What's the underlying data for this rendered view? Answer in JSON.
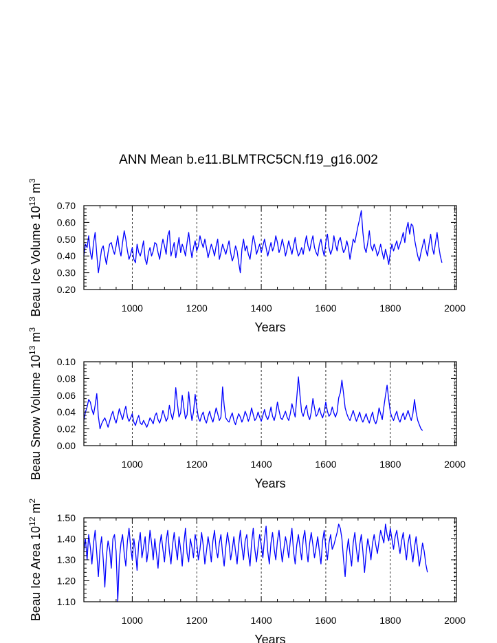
{
  "figure_title": "ANN Mean b.e11.BLMTRC5CN.f19_g16.002",
  "chart_data": [
    {
      "type": "line",
      "title": "",
      "xlabel": "Years",
      "ylabel": "Beau Ice Volume 10^13 m^3",
      "ylabel_parts": {
        "base": "Beau Ice Volume 10",
        "exp": "13",
        "unit": "m",
        "unit_exp": "3"
      },
      "xlim": [
        850,
        2005
      ],
      "ylim": [
        0.2,
        0.7
      ],
      "x_ticks": [
        1000,
        1200,
        1400,
        1600,
        1800,
        2000
      ],
      "x_tick_labels": [
        "1000",
        "1200",
        "1400",
        "1600",
        "1800",
        "2000"
      ],
      "y_ticks": [
        0.2,
        0.3,
        0.4,
        0.5,
        0.6,
        0.7
      ],
      "y_tick_labels": [
        "0.20",
        "0.30",
        "0.40",
        "0.50",
        "0.60",
        "0.70"
      ],
      "vertical_gridlines": [
        1000,
        1200,
        1400,
        1600,
        1800,
        2000
      ],
      "line_color": "#0000ff",
      "series": [
        {
          "name": "Beau Ice Volume",
          "x_start": 850,
          "x_step": 5,
          "values": [
            0.4,
            0.47,
            0.45,
            0.52,
            0.42,
            0.38,
            0.48,
            0.54,
            0.41,
            0.3,
            0.37,
            0.44,
            0.46,
            0.4,
            0.35,
            0.42,
            0.47,
            0.48,
            0.44,
            0.41,
            0.46,
            0.52,
            0.44,
            0.4,
            0.48,
            0.55,
            0.5,
            0.43,
            0.38,
            0.41,
            0.45,
            0.38,
            0.36,
            0.47,
            0.42,
            0.4,
            0.44,
            0.49,
            0.38,
            0.35,
            0.42,
            0.45,
            0.4,
            0.43,
            0.48,
            0.47,
            0.42,
            0.38,
            0.45,
            0.5,
            0.46,
            0.41,
            0.52,
            0.55,
            0.4,
            0.44,
            0.48,
            0.39,
            0.45,
            0.51,
            0.42,
            0.47,
            0.44,
            0.4,
            0.48,
            0.54,
            0.45,
            0.39,
            0.45,
            0.49,
            0.43,
            0.46,
            0.52,
            0.48,
            0.45,
            0.5,
            0.45,
            0.39,
            0.43,
            0.47,
            0.44,
            0.4,
            0.46,
            0.5,
            0.38,
            0.42,
            0.47,
            0.44,
            0.41,
            0.45,
            0.49,
            0.42,
            0.37,
            0.4,
            0.46,
            0.43,
            0.36,
            0.3,
            0.44,
            0.5,
            0.43,
            0.46,
            0.41,
            0.38,
            0.45,
            0.52,
            0.48,
            0.41,
            0.44,
            0.47,
            0.42,
            0.46,
            0.5,
            0.45,
            0.4,
            0.44,
            0.48,
            0.43,
            0.46,
            0.52,
            0.48,
            0.42,
            0.45,
            0.5,
            0.46,
            0.4,
            0.44,
            0.49,
            0.45,
            0.41,
            0.46,
            0.51,
            0.44,
            0.4,
            0.42,
            0.45,
            0.41,
            0.47,
            0.52,
            0.46,
            0.43,
            0.48,
            0.52,
            0.45,
            0.42,
            0.4,
            0.47,
            0.5,
            0.44,
            0.4,
            0.48,
            0.53,
            0.45,
            0.41,
            0.44,
            0.52,
            0.47,
            0.43,
            0.49,
            0.51,
            0.46,
            0.42,
            0.44,
            0.49,
            0.45,
            0.38,
            0.44,
            0.5,
            0.48,
            0.53,
            0.58,
            0.62,
            0.67,
            0.54,
            0.45,
            0.42,
            0.48,
            0.55,
            0.46,
            0.43,
            0.47,
            0.44,
            0.4,
            0.43,
            0.47,
            0.42,
            0.38,
            0.44,
            0.4,
            0.35,
            0.42,
            0.47,
            0.43,
            0.46,
            0.49,
            0.44,
            0.47,
            0.5,
            0.54,
            0.48,
            0.56,
            0.6,
            0.53,
            0.59,
            0.58,
            0.5,
            0.45,
            0.4,
            0.37,
            0.42,
            0.46,
            0.5,
            0.44,
            0.4,
            0.47,
            0.53,
            0.45,
            0.41,
            0.48,
            0.54,
            0.46,
            0.4,
            0.36
          ]
        }
      ]
    },
    {
      "type": "line",
      "title": "",
      "xlabel": "Years",
      "ylabel": "Beau Snow Volume 10^13 m^3",
      "ylabel_parts": {
        "base": "Beau Snow Volume 10",
        "exp": "13",
        "unit": "m",
        "unit_exp": "3"
      },
      "xlim": [
        850,
        2005
      ],
      "ylim": [
        0.0,
        0.1
      ],
      "x_ticks": [
        1000,
        1200,
        1400,
        1600,
        1800,
        2000
      ],
      "x_tick_labels": [
        "1000",
        "1200",
        "1400",
        "1600",
        "1800",
        "2000"
      ],
      "y_ticks": [
        0.0,
        0.02,
        0.04,
        0.06,
        0.08,
        0.1
      ],
      "y_tick_labels": [
        "0.00",
        "0.02",
        "0.04",
        "0.06",
        "0.08",
        "0.10"
      ],
      "vertical_gridlines": [
        1000,
        1200,
        1400,
        1600,
        1800,
        2000
      ],
      "line_color": "#0000ff",
      "series": [
        {
          "name": "Beau Snow Volume",
          "x_start": 850,
          "x_step": 5,
          "values": [
            0.03,
            0.04,
            0.046,
            0.055,
            0.052,
            0.043,
            0.037,
            0.048,
            0.062,
            0.035,
            0.02,
            0.026,
            0.03,
            0.033,
            0.028,
            0.022,
            0.029,
            0.036,
            0.041,
            0.032,
            0.027,
            0.035,
            0.044,
            0.037,
            0.031,
            0.04,
            0.047,
            0.034,
            0.029,
            0.033,
            0.038,
            0.028,
            0.024,
            0.031,
            0.036,
            0.027,
            0.025,
            0.03,
            0.026,
            0.022,
            0.027,
            0.033,
            0.03,
            0.026,
            0.035,
            0.039,
            0.031,
            0.027,
            0.033,
            0.042,
            0.036,
            0.029,
            0.033,
            0.048,
            0.038,
            0.031,
            0.042,
            0.069,
            0.05,
            0.034,
            0.039,
            0.06,
            0.045,
            0.032,
            0.037,
            0.064,
            0.044,
            0.03,
            0.04,
            0.061,
            0.046,
            0.033,
            0.029,
            0.036,
            0.04,
            0.031,
            0.027,
            0.035,
            0.041,
            0.033,
            0.028,
            0.036,
            0.045,
            0.038,
            0.03,
            0.034,
            0.07,
            0.048,
            0.033,
            0.03,
            0.028,
            0.034,
            0.039,
            0.03,
            0.025,
            0.032,
            0.038,
            0.034,
            0.028,
            0.033,
            0.041,
            0.036,
            0.029,
            0.035,
            0.045,
            0.037,
            0.03,
            0.033,
            0.04,
            0.034,
            0.029,
            0.036,
            0.043,
            0.035,
            0.031,
            0.037,
            0.046,
            0.035,
            0.03,
            0.038,
            0.052,
            0.042,
            0.033,
            0.031,
            0.036,
            0.041,
            0.034,
            0.03,
            0.038,
            0.05,
            0.042,
            0.034,
            0.057,
            0.082,
            0.06,
            0.04,
            0.035,
            0.042,
            0.048,
            0.036,
            0.031,
            0.04,
            0.056,
            0.045,
            0.035,
            0.038,
            0.045,
            0.038,
            0.033,
            0.04,
            0.052,
            0.041,
            0.035,
            0.038,
            0.046,
            0.039,
            0.034,
            0.04,
            0.057,
            0.063,
            0.078,
            0.062,
            0.045,
            0.038,
            0.033,
            0.03,
            0.036,
            0.042,
            0.035,
            0.029,
            0.034,
            0.04,
            0.032,
            0.028,
            0.033,
            0.038,
            0.031,
            0.027,
            0.034,
            0.04,
            0.03,
            0.026,
            0.032,
            0.045,
            0.038,
            0.031,
            0.046,
            0.06,
            0.072,
            0.055,
            0.04,
            0.034,
            0.03,
            0.036,
            0.041,
            0.032,
            0.028,
            0.034,
            0.039,
            0.031,
            0.036,
            0.042,
            0.035,
            0.03,
            0.038,
            0.055,
            0.04,
            0.03,
            0.025,
            0.02,
            0.018
          ]
        }
      ]
    },
    {
      "type": "line",
      "title": "",
      "xlabel": "Years",
      "ylabel": "Beau Ice Area 10^12 m^2",
      "ylabel_parts": {
        "base": "Beau Ice Area 10",
        "exp": "12",
        "unit": "m",
        "unit_exp": "2"
      },
      "xlim": [
        850,
        2005
      ],
      "ylim": [
        1.1,
        1.5
      ],
      "x_ticks": [
        1000,
        1200,
        1400,
        1600,
        1800,
        2000
      ],
      "x_tick_labels": [
        "1000",
        "1200",
        "1400",
        "1600",
        "1800",
        "2000"
      ],
      "y_ticks": [
        1.1,
        1.2,
        1.3,
        1.4,
        1.5
      ],
      "y_tick_labels": [
        "1.10",
        "1.20",
        "1.30",
        "1.40",
        "1.50"
      ],
      "vertical_gridlines": [
        1000,
        1200,
        1400,
        1600,
        1800,
        2000
      ],
      "line_color": "#0000ff",
      "series": [
        {
          "name": "Beau Ice Area",
          "x_start": 850,
          "x_step": 5,
          "values": [
            1.34,
            1.4,
            1.3,
            1.42,
            1.36,
            1.28,
            1.38,
            1.44,
            1.33,
            1.22,
            1.35,
            1.41,
            1.3,
            1.17,
            1.32,
            1.39,
            1.35,
            1.26,
            1.4,
            1.42,
            1.34,
            1.1,
            1.3,
            1.38,
            1.42,
            1.33,
            1.27,
            1.39,
            1.45,
            1.36,
            1.3,
            1.4,
            1.34,
            1.25,
            1.38,
            1.43,
            1.31,
            1.36,
            1.41,
            1.29,
            1.35,
            1.44,
            1.38,
            1.3,
            1.4,
            1.33,
            1.26,
            1.37,
            1.42,
            1.35,
            1.29,
            1.39,
            1.44,
            1.34,
            1.28,
            1.37,
            1.43,
            1.36,
            1.3,
            1.41,
            1.35,
            1.27,
            1.38,
            1.45,
            1.33,
            1.29,
            1.4,
            1.36,
            1.31,
            1.42,
            1.38,
            1.3,
            1.35,
            1.43,
            1.37,
            1.28,
            1.34,
            1.41,
            1.36,
            1.29,
            1.39,
            1.44,
            1.35,
            1.31,
            1.38,
            1.42,
            1.33,
            1.27,
            1.36,
            1.43,
            1.38,
            1.3,
            1.35,
            1.41,
            1.34,
            1.28,
            1.37,
            1.44,
            1.36,
            1.3,
            1.39,
            1.42,
            1.33,
            1.27,
            1.38,
            1.45,
            1.35,
            1.29,
            1.36,
            1.42,
            1.37,
            1.31,
            1.4,
            1.46,
            1.34,
            1.28,
            1.38,
            1.43,
            1.35,
            1.3,
            1.39,
            1.44,
            1.36,
            1.29,
            1.35,
            1.41,
            1.37,
            1.31,
            1.39,
            1.45,
            1.34,
            1.28,
            1.37,
            1.42,
            1.36,
            1.3,
            1.4,
            1.44,
            1.35,
            1.29,
            1.38,
            1.43,
            1.37,
            1.31,
            1.36,
            1.41,
            1.34,
            1.28,
            1.39,
            1.44,
            1.36,
            1.3,
            1.38,
            1.42,
            1.35,
            1.37,
            1.4,
            1.43,
            1.47,
            1.45,
            1.4,
            1.3,
            1.22,
            1.34,
            1.4,
            1.33,
            1.27,
            1.38,
            1.43,
            1.35,
            1.29,
            1.37,
            1.42,
            1.34,
            1.24,
            1.33,
            1.4,
            1.36,
            1.3,
            1.38,
            1.42,
            1.37,
            1.33,
            1.39,
            1.44,
            1.41,
            1.38,
            1.47,
            1.42,
            1.39,
            1.45,
            1.4,
            1.35,
            1.41,
            1.44,
            1.38,
            1.33,
            1.39,
            1.43,
            1.36,
            1.3,
            1.38,
            1.42,
            1.35,
            1.29,
            1.36,
            1.41,
            1.34,
            1.27,
            1.32,
            1.38,
            1.34,
            1.28,
            1.24
          ]
        }
      ]
    }
  ]
}
